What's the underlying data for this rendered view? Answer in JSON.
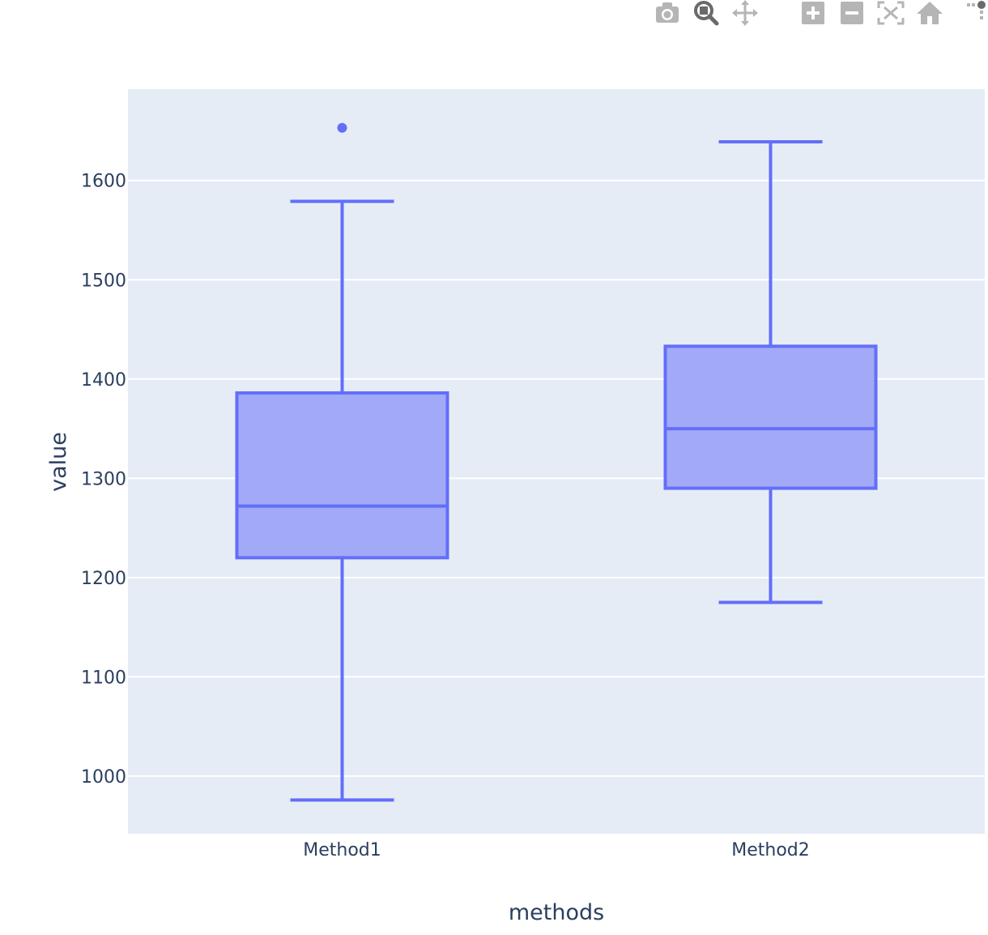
{
  "modebar": {
    "buttons": [
      {
        "name": "camera-icon",
        "icon": "camera"
      },
      {
        "name": "zoom-icon",
        "icon": "zoom"
      },
      {
        "name": "pan-icon",
        "icon": "pan"
      },
      {
        "name": "zoom-in-icon",
        "icon": "zoom-in"
      },
      {
        "name": "zoom-out-icon",
        "icon": "zoom-out"
      },
      {
        "name": "autoscale-icon",
        "icon": "autoscale"
      },
      {
        "name": "reset-axes-icon",
        "icon": "home"
      },
      {
        "name": "more-icon",
        "icon": "more"
      }
    ],
    "colors": {
      "icon": "#b5b5b5",
      "active": "#6a6a6a"
    }
  },
  "chart_data": {
    "type": "box",
    "xlabel": "methods",
    "ylabel": "value",
    "ylim": [
      942,
      1692
    ],
    "yticks": [
      1000,
      1100,
      1200,
      1300,
      1400,
      1500,
      1600
    ],
    "categories": [
      "Method1",
      "Method2"
    ],
    "series": [
      {
        "category": "Method1",
        "min": 976,
        "q1": 1220,
        "median": 1272,
        "q3": 1386,
        "max": 1579,
        "outliers": [
          1653
        ]
      },
      {
        "category": "Method2",
        "min": 1175,
        "q1": 1290,
        "median": 1350,
        "q3": 1433,
        "max": 1639,
        "outliers": []
      }
    ],
    "grid": true,
    "colors": {
      "line": "#636efa",
      "fill": "#a2aaf7",
      "plot_bg": "#e5ecf6",
      "grid": "#ffffff",
      "text": "#2a3f5f"
    }
  }
}
